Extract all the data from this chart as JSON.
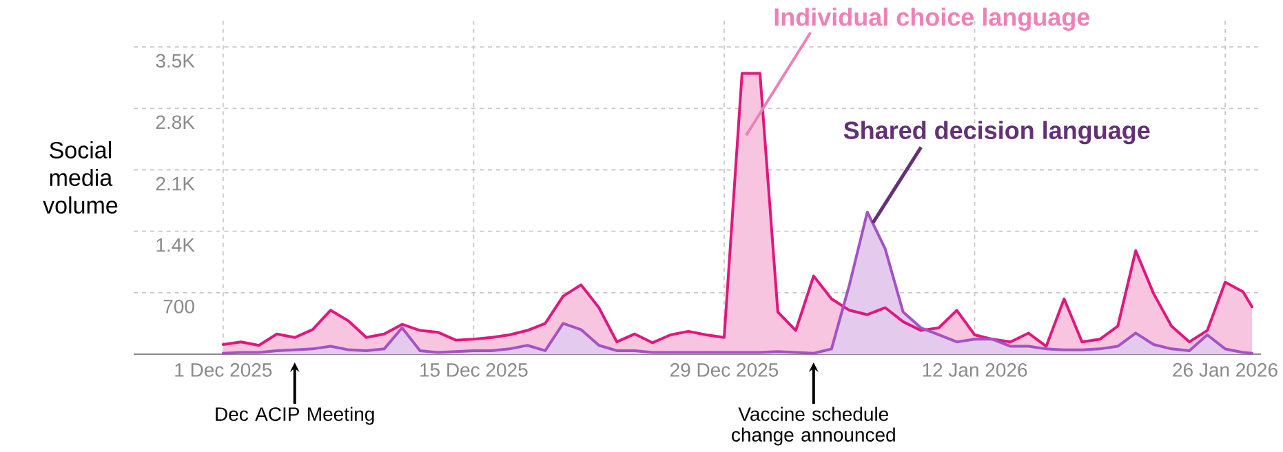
{
  "chart_data": {
    "type": "area",
    "ylabel": "Social media volume",
    "x": [
      "2025-12-01",
      "2025-12-02",
      "2025-12-03",
      "2025-12-04",
      "2025-12-05",
      "2025-12-06",
      "2025-12-07",
      "2025-12-08",
      "2025-12-09",
      "2025-12-10",
      "2025-12-11",
      "2025-12-12",
      "2025-12-13",
      "2025-12-14",
      "2025-12-15",
      "2025-12-16",
      "2025-12-17",
      "2025-12-18",
      "2025-12-19",
      "2025-12-20",
      "2025-12-21",
      "2025-12-22",
      "2025-12-23",
      "2025-12-24",
      "2025-12-25",
      "2025-12-26",
      "2025-12-27",
      "2025-12-28",
      "2025-12-29",
      "2025-12-30",
      "2025-12-31",
      "2026-01-01",
      "2026-01-02",
      "2026-01-03",
      "2026-01-04",
      "2026-01-05",
      "2026-01-06",
      "2026-01-07",
      "2026-01-08",
      "2026-01-09",
      "2026-01-10",
      "2026-01-11",
      "2026-01-12",
      "2026-01-13",
      "2026-01-14",
      "2026-01-15",
      "2026-01-16",
      "2026-01-17",
      "2026-01-18",
      "2026-01-19",
      "2026-01-20",
      "2026-01-21",
      "2026-01-22",
      "2026-01-23",
      "2026-01-24",
      "2026-01-25",
      "2026-01-26",
      "2026-01-27",
      "2026-01-27T12:00"
    ],
    "series": [
      {
        "name": "Individual choice language",
        "color": "#e0177e",
        "values": [
          110,
          140,
          100,
          230,
          190,
          280,
          500,
          380,
          190,
          230,
          340,
          270,
          250,
          160,
          170,
          190,
          220,
          270,
          350,
          660,
          790,
          530,
          140,
          230,
          130,
          220,
          260,
          220,
          190,
          3200,
          3200,
          480,
          270,
          890,
          630,
          500,
          450,
          530,
          370,
          270,
          300,
          500,
          220,
          170,
          140,
          240,
          90,
          630,
          140,
          170,
          320,
          1180,
          690,
          320,
          140,
          270,
          820,
          710,
          540
        ]
      },
      {
        "name": "Shared decision language",
        "color": "#a452c4",
        "values": [
          10,
          20,
          20,
          40,
          50,
          60,
          90,
          50,
          40,
          60,
          300,
          40,
          20,
          30,
          40,
          40,
          60,
          100,
          40,
          350,
          280,
          100,
          40,
          40,
          20,
          20,
          20,
          20,
          20,
          20,
          20,
          30,
          20,
          10,
          60,
          790,
          1620,
          1200,
          480,
          300,
          220,
          140,
          170,
          170,
          90,
          90,
          60,
          50,
          50,
          60,
          90,
          240,
          110,
          60,
          40,
          220,
          60,
          20,
          10
        ]
      }
    ],
    "xlim": [
      "2025-11-26",
      "2026-01-28"
    ],
    "xticks": [
      {
        "value": "2025-12-01",
        "label": "1 Dec 2025"
      },
      {
        "value": "2025-12-15",
        "label": "15 Dec 2025"
      },
      {
        "value": "2025-12-29",
        "label": "29 Dec 2025"
      },
      {
        "value": "2026-01-12",
        "label": "12 Jan 2026"
      },
      {
        "value": "2026-01-26",
        "label": "26 Jan 2026"
      }
    ],
    "ylim": [
      0,
      3800
    ],
    "yticks": [
      700,
      {
        "value": 1400,
        "label": "1.4K"
      },
      {
        "value": 2100,
        "label": "2.1K"
      },
      {
        "value": 2800,
        "label": "2.8K"
      },
      {
        "value": 3500,
        "label": "3.5K"
      }
    ],
    "grid": true,
    "annotations": [
      {
        "text": "Dec ACIP Meeting",
        "x": "2025-12-05",
        "y": 0
      },
      {
        "text": "Vaccine schedule change announced",
        "x": "2026-01-03",
        "y": 0
      }
    ]
  }
}
